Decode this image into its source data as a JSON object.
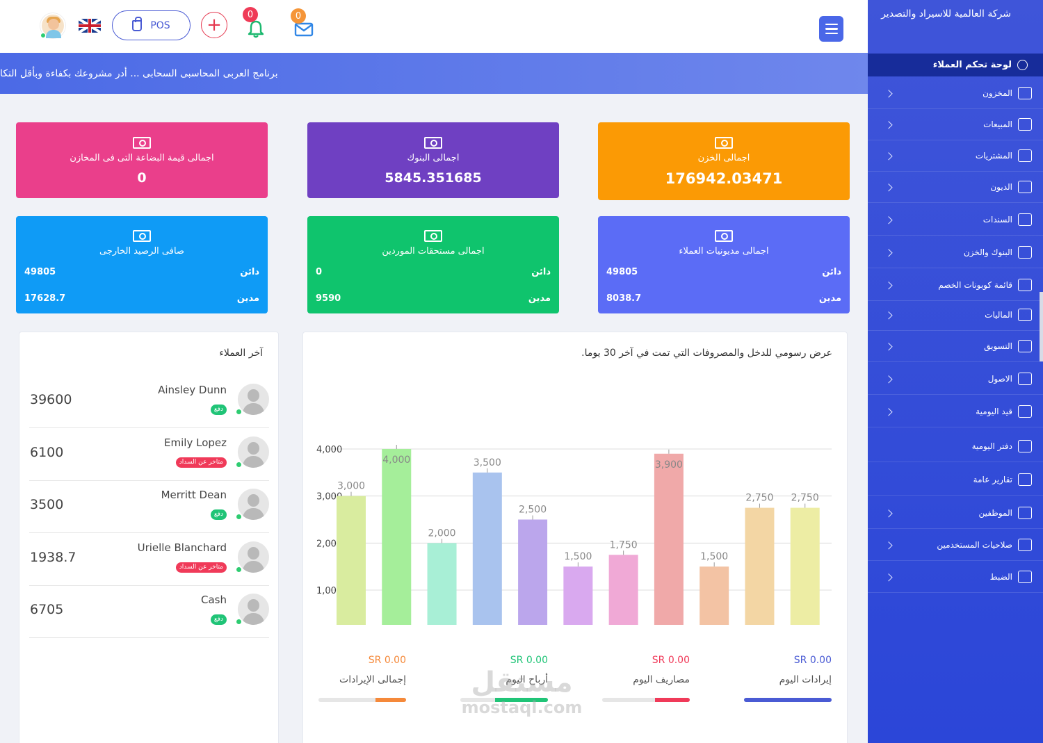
{
  "header": {
    "pos_label": "POS",
    "notifications_count": "0",
    "messages_count": "0"
  },
  "marquee": "برنامج العربى المحاسبى السحابى ... أدر مشروعك بكفاءة وبأقل التكا",
  "sidebar": {
    "company_name": "شركة العالمية للاسيراد والتصدير",
    "active_item": "لوحة تحكم العملاء",
    "items": [
      {
        "label": "المخزون",
        "icon": "boxes-icon",
        "chevron": true
      },
      {
        "label": "المبيعات",
        "icon": "cart-plus-icon",
        "chevron": true
      },
      {
        "label": "المشتريات",
        "icon": "credit-card-icon",
        "chevron": true
      },
      {
        "label": "الديون",
        "icon": "debt-icon",
        "chevron": true
      },
      {
        "label": "السندات",
        "icon": "cash-icon",
        "chevron": true
      },
      {
        "label": "البنوك والخزن",
        "icon": "bank-icon",
        "chevron": true
      },
      {
        "label": "قائمة كوبونات الخصم",
        "icon": "list-icon",
        "chevron": true
      },
      {
        "label": "الماليات",
        "icon": "coins-icon",
        "chevron": true
      },
      {
        "label": "التسويق",
        "icon": "ad-icon",
        "chevron": true
      },
      {
        "label": "الاصول",
        "icon": "assets-icon",
        "chevron": true
      },
      {
        "label": "قيد اليومية",
        "icon": "journal-icon",
        "chevron": true
      },
      {
        "label": "دفتر اليومية",
        "icon": "ledger-icon",
        "chevron": false
      },
      {
        "label": "تقارير عامة",
        "icon": "report-icon",
        "chevron": false
      },
      {
        "label": "الموظفين",
        "icon": "users-icon",
        "chevron": true
      },
      {
        "label": "صلاحيات المستخدمين",
        "icon": "check-circle-icon",
        "chevron": true
      },
      {
        "label": "الضبط",
        "icon": "gears-icon",
        "chevron": true
      }
    ]
  },
  "cards": {
    "treasury": {
      "title": "اجمالى الخزن",
      "value": "176942.03471"
    },
    "banks": {
      "title": "اجمالى البنوك",
      "value": "5845.351685"
    },
    "stock_value": {
      "title": "اجمالى قيمة البضاعة التى فى المخازن",
      "value": "0"
    },
    "customers_debts": {
      "title": "اجمالى مديونيات العملاء",
      "credit_label": "دائن",
      "credit": "49805",
      "debit_label": "مدين",
      "debit": "8038.7"
    },
    "suppliers_dues": {
      "title": "اجمالى مستحقات الموردين",
      "credit_label": "دائن",
      "credit": "0",
      "debit_label": "مدين",
      "debit": "9590"
    },
    "external_balance": {
      "title": "صافى الرصيد الخارجى",
      "credit_label": "دائن",
      "credit": "49805",
      "debit_label": "مدين",
      "debit": "17628.7"
    }
  },
  "clients": {
    "title": "آخر العملاء",
    "list": [
      {
        "name": "Ainsley Dunn",
        "amount": "39600",
        "status": "دفع",
        "status_type": "paid"
      },
      {
        "name": "Emily Lopez",
        "amount": "6100",
        "status": "متاخر عن السداد",
        "status_type": "late"
      },
      {
        "name": "Merritt Dean",
        "amount": "3500",
        "status": "دفع",
        "status_type": "paid"
      },
      {
        "name": "Urielle Blanchard",
        "amount": "1938.7",
        "status": "متاخر عن السداد",
        "status_type": "late"
      },
      {
        "name": "Cash",
        "amount": "6705",
        "status": "دفع",
        "status_type": "paid"
      }
    ]
  },
  "chart_data": {
    "type": "bar",
    "title": "عرض رسومي للدخل والمصروفات التي تمت في آخر 30 يوما.",
    "y_ticks": [
      "4,000",
      "3,000",
      "2,000",
      "1,000"
    ],
    "ylim": [
      250,
      4000
    ],
    "values": [
      3000,
      4000,
      2000,
      3500,
      2500,
      1500,
      1750,
      3900,
      1500,
      2750,
      2750
    ],
    "value_labels": [
      "3,000",
      "4,000",
      "2,000",
      "3,500",
      "2,500",
      "1,500",
      "1,750",
      "3,900",
      "1,500",
      "2,750",
      "2,750"
    ],
    "colors": [
      "#d9ec9f",
      "#a5ee9a",
      "#a8efd6",
      "#a9c3ee",
      "#bba6ec",
      "#d9a9ef",
      "#f0a9d6",
      "#f0a9a9",
      "#f3c3a4",
      "#f3d6a4",
      "#ededa4"
    ],
    "grid": true
  },
  "kpis": [
    {
      "label": "إيرادات اليوم",
      "value": "SR 0.00",
      "color": "#4a5bd4",
      "fill": 1.0
    },
    {
      "label": "مصاريف اليوم",
      "value": "SR 0.00",
      "color": "#f03a59",
      "fill": 0.4
    },
    {
      "label": "أرباح اليوم",
      "value": "SR 0.00",
      "color": "#20c477",
      "fill": 0.6
    },
    {
      "label": "إجمالى الإيرادات",
      "value": "SR 0.00",
      "color": "#f5893a",
      "fill": 0.35
    }
  ],
  "watermark": {
    "ar": "مستقل",
    "en": "mostaql.com"
  }
}
